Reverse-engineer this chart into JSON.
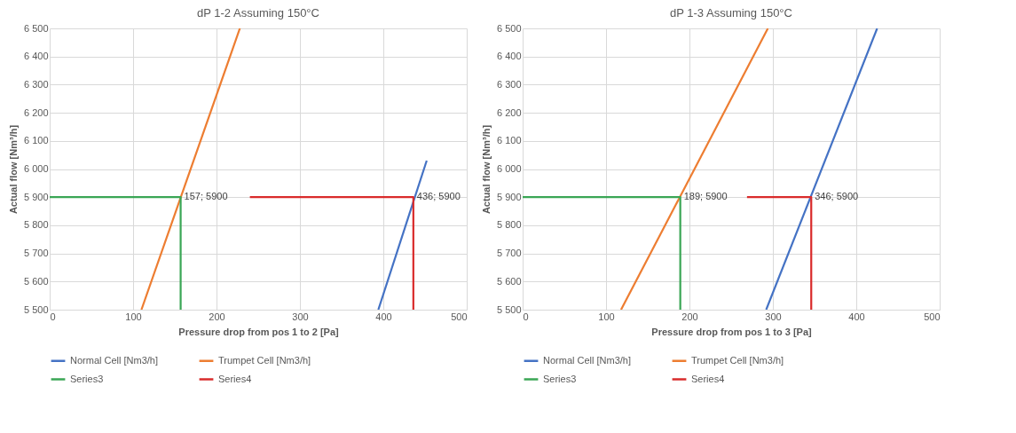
{
  "chart_data": [
    {
      "type": "line",
      "title": "dP 1-2 Assuming 150°C",
      "xlabel": "Pressure drop from pos 1 to 2 [Pa]",
      "ylabel": "Actual flow [Nm³/h]",
      "series": [
        {
          "name": "Normal Cell [Nm3/h]",
          "color": "#4472c4",
          "x": [
            394,
            452
          ],
          "values": [
            5500,
            6030
          ]
        },
        {
          "name": "Trumpet Cell [Nm3/h]",
          "color": "#ed7d31",
          "x": [
            110,
            228
          ],
          "values": [
            5500,
            6500
          ]
        },
        {
          "name": "Series3",
          "color": "#3aa655",
          "x": [
            0,
            157,
            157
          ],
          "values": [
            5900,
            5900,
            5500
          ]
        },
        {
          "name": "Series4",
          "color": "#d92b2b",
          "x": [
            240,
            436,
            436
          ],
          "values": [
            5900,
            5900,
            5500
          ]
        }
      ],
      "annotations": [
        {
          "text": "157; 5900",
          "x": 157,
          "y": 5900
        },
        {
          "text": "436; 5900",
          "x": 436,
          "y": 5900
        }
      ],
      "xlim": [
        0,
        500
      ],
      "xticks": [
        0,
        100,
        200,
        300,
        400,
        500
      ],
      "ylim": [
        5500,
        6500
      ],
      "yticks": [
        {
          "value": 5500,
          "label": "5 500"
        },
        {
          "value": 5600,
          "label": "5 600"
        },
        {
          "value": 5700,
          "label": "5 700"
        },
        {
          "value": 5800,
          "label": "5 800"
        },
        {
          "value": 5900,
          "label": "5 900"
        },
        {
          "value": 6000,
          "label": "6 000"
        },
        {
          "value": 6100,
          "label": "6 100"
        },
        {
          "value": 6200,
          "label": "6 200"
        },
        {
          "value": 6300,
          "label": "6 300"
        },
        {
          "value": 6400,
          "label": "6 400"
        },
        {
          "value": 6500,
          "label": "6 500"
        }
      ],
      "grid": true,
      "legend": "bottom",
      "marker": "none",
      "line_style": "solid"
    },
    {
      "type": "line",
      "title": "dP 1-3 Assuming 150°C",
      "xlabel": "Pressure drop from pos 1 to 3 [Pa]",
      "ylabel": "Actual flow [Nm³/h]",
      "series": [
        {
          "name": "Normal Cell [Nm3/h]",
          "color": "#4472c4",
          "x": [
            292,
            425
          ],
          "values": [
            5500,
            6500
          ]
        },
        {
          "name": "Trumpet Cell [Nm3/h]",
          "color": "#ed7d31",
          "x": [
            118,
            294
          ],
          "values": [
            5500,
            6500
          ]
        },
        {
          "name": "Series3",
          "color": "#3aa655",
          "x": [
            0,
            189,
            189
          ],
          "values": [
            5900,
            5900,
            5500
          ]
        },
        {
          "name": "Series4",
          "color": "#d92b2b",
          "x": [
            269,
            346,
            346
          ],
          "values": [
            5900,
            5900,
            5500
          ]
        }
      ],
      "annotations": [
        {
          "text": "189; 5900",
          "x": 189,
          "y": 5900
        },
        {
          "text": "346; 5900",
          "x": 346,
          "y": 5900
        }
      ],
      "xlim": [
        0,
        500
      ],
      "xticks": [
        0,
        100,
        200,
        300,
        400,
        500
      ],
      "ylim": [
        5500,
        6500
      ],
      "yticks": [
        {
          "value": 5500,
          "label": "5 500"
        },
        {
          "value": 5600,
          "label": "5 600"
        },
        {
          "value": 5700,
          "label": "5 700"
        },
        {
          "value": 5800,
          "label": "5 800"
        },
        {
          "value": 5900,
          "label": "5 900"
        },
        {
          "value": 6000,
          "label": "6 000"
        },
        {
          "value": 6100,
          "label": "6 100"
        },
        {
          "value": 6200,
          "label": "6 200"
        },
        {
          "value": 6300,
          "label": "6 300"
        },
        {
          "value": 6400,
          "label": "6 400"
        },
        {
          "value": 6500,
          "label": "6 500"
        }
      ],
      "grid": true,
      "legend": "bottom",
      "marker": "none",
      "line_style": "solid"
    }
  ]
}
